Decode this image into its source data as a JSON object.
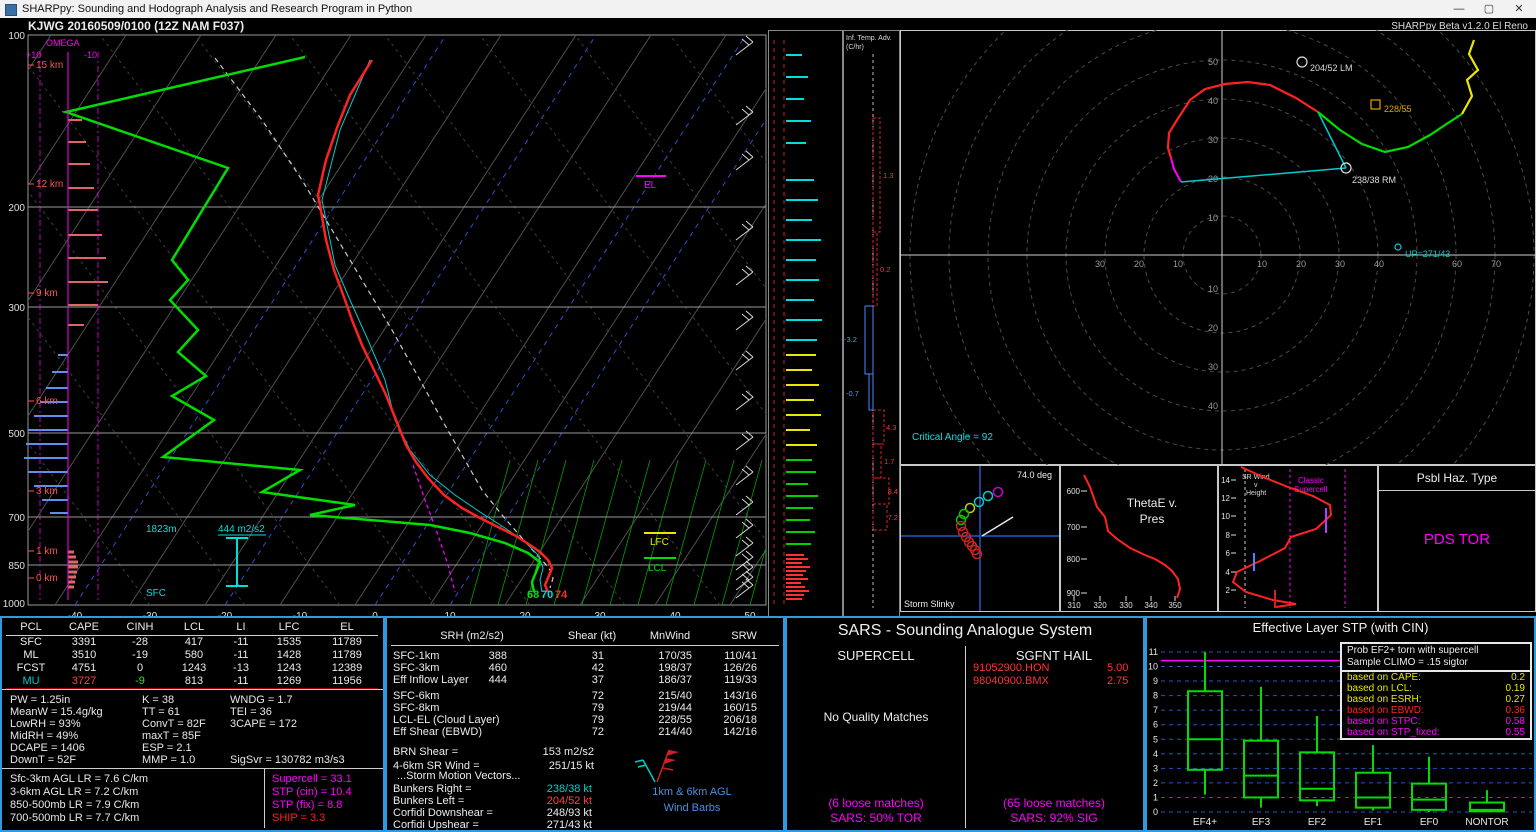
{
  "window": {
    "title": "SHARPpy: Sounding and Hodograph Analysis and Research Program in Python",
    "minimize": "—",
    "maximize": "▢",
    "close": "✕"
  },
  "header": {
    "station_line": "KJWG   20160509/0100  (12Z  NAM  F037)",
    "version": "SHARPpy Beta v1.2.0 El Reno"
  },
  "skewt": {
    "pressure_labels": [
      "100",
      "200",
      "300",
      "500",
      "700",
      "850",
      "1000"
    ],
    "height_labels": [
      "15 km",
      "12 km",
      "9 km",
      "6 km",
      "3 km",
      "1 km",
      "0 km"
    ],
    "temp_labels": [
      "-40",
      "-30",
      "-20",
      "-10",
      "0",
      "10",
      "20",
      "30",
      "40",
      "50"
    ],
    "omega": {
      "title": "OMEGA",
      "plus": "+10",
      "minus": "-10"
    },
    "annotations": {
      "el": "EL",
      "lfc": "LFC",
      "lcl": "LCL",
      "sfc": "SFC",
      "inflow_height": "1823m",
      "inflow_srh": "444 m2/s2",
      "sfc_dewpoint_f": "68",
      "sfc_wetbulb_f": "70",
      "sfc_temp_f": "74"
    }
  },
  "temp_adv": {
    "title_line1": "Inf. Temp. Adv.",
    "title_line2": "(C/hr)",
    "values": [
      "1.3",
      "0.2",
      "-3.2",
      "-0.7",
      "4.3",
      "1.7",
      "8.4",
      "7.2"
    ]
  },
  "hodograph": {
    "axis_up": [
      "10",
      "20",
      "30",
      "40",
      "50"
    ],
    "axis_down": [
      "10",
      "20",
      "30",
      "40"
    ],
    "axis_right": [
      "10",
      "20",
      "30",
      "40",
      "60",
      "70"
    ],
    "axis_left": [
      "10",
      "20",
      "30"
    ],
    "marker_lm": "204/52 LM",
    "marker_mid": "228/55",
    "marker_rm": "238/38 RM",
    "marker_up": "UP=271/43",
    "critical_angle": "Critical Angle = 92"
  },
  "slinky": {
    "title": "Storm Slinky",
    "deg": "74.0 deg"
  },
  "thetae": {
    "title1": "ThetaE v.",
    "title2": "Pres",
    "y_ticks": [
      "600",
      "700",
      "800",
      "900"
    ],
    "x_ticks": [
      "310",
      "320",
      "330",
      "340",
      "350"
    ]
  },
  "srwind": {
    "label1": "SR Wind",
    "label2": "v",
    "label3": "Height",
    "classic1": "Classic",
    "classic2": "Supercell",
    "y_ticks": [
      "14",
      "12",
      "10",
      "8",
      "6",
      "4",
      "2"
    ]
  },
  "hazard": {
    "title": "Psbl Haz. Type",
    "value": "PDS TOR"
  },
  "parcels": {
    "headers": [
      "PCL",
      "CAPE",
      "CINH",
      "LCL",
      "LI",
      "LFC",
      "EL"
    ],
    "rows": [
      {
        "name": "SFC",
        "vals": [
          "3391",
          "-28",
          "417",
          "-11",
          "1535",
          "11789"
        ],
        "mu": false
      },
      {
        "name": "ML",
        "vals": [
          "3510",
          "-19",
          "580",
          "-11",
          "1428",
          "11789"
        ],
        "mu": false
      },
      {
        "name": "FCST",
        "vals": [
          "4751",
          "0",
          "1243",
          "-13",
          "1243",
          "12389"
        ],
        "mu": false
      },
      {
        "name": "MU",
        "vals": [
          "3727",
          "-9",
          "813",
          "-11",
          "1269",
          "11956"
        ],
        "mu": true
      }
    ]
  },
  "thermo": {
    "col1": [
      "PW = 1.25in",
      "MeanW = 15.4g/kg",
      "LowRH = 93%",
      "MidRH = 49%",
      "DCAPE = 1406",
      "DownT = 52F"
    ],
    "col2": [
      "K = 38",
      "TT = 61",
      "ConvT = 82F",
      "maxT = 85F",
      "ESP = 2.1",
      "MMP = 1.0"
    ],
    "col3": [
      "WNDG = 1.7",
      "TEI = 36",
      "3CAPE = 172",
      "",
      "",
      "SigSvr = 130782 m3/s3"
    ]
  },
  "lapse_rates": [
    "Sfc-3km AGL LR = 7.6 C/km",
    "3-6km AGL LR = 7.2 C/km",
    "850-500mb LR = 7.9 C/km",
    "700-500mb LR = 7.7 C/km"
  ],
  "composite": [
    {
      "text": "Supercell = 33.1",
      "color": "#ff00ff"
    },
    {
      "text": "STP (cin) = 10.4",
      "color": "#ff00ff"
    },
    {
      "text": "STP (fix) = 8.8",
      "color": "#ff00ff"
    },
    {
      "text": "SHIP = 3.3",
      "color": "#ff2020"
    }
  ],
  "kinematics": {
    "headers": [
      "SRH (m2/s2)",
      "Shear (kt)",
      "MnWind",
      "SRW"
    ],
    "rows1": [
      {
        "label": "SFC-1km",
        "srh": "388",
        "shear": "31",
        "mnwind": "170/35",
        "srw": "110/41"
      },
      {
        "label": "SFC-3km",
        "srh": "460",
        "shear": "42",
        "mnwind": "198/37",
        "srw": "126/26"
      },
      {
        "label": "Eff Inflow Layer",
        "srh": "444",
        "shear": "37",
        "mnwind": "186/37",
        "srw": "119/33"
      }
    ],
    "rows2": [
      {
        "label": "SFC-6km",
        "srh": "",
        "shear": "72",
        "mnwind": "215/40",
        "srw": "143/16"
      },
      {
        "label": "SFC-8km",
        "srh": "",
        "shear": "79",
        "mnwind": "219/44",
        "srw": "160/15"
      },
      {
        "label": "LCL-EL (Cloud Layer)",
        "srh": "",
        "shear": "79",
        "mnwind": "228/55",
        "srw": "206/18"
      },
      {
        "label": "Eff Shear (EBWD)",
        "srh": "",
        "shear": "72",
        "mnwind": "214/40",
        "srw": "142/16"
      }
    ],
    "brn_rows": [
      {
        "label": "BRN Shear =",
        "value": "153 m2/s2"
      },
      {
        "label": "4-6km SR Wind =",
        "value": "251/15 kt"
      }
    ],
    "sm_title": "...Storm Motion Vectors...",
    "sm_rows": [
      {
        "label": "Bunkers Right =",
        "value": "238/38 kt",
        "color": "#00cccc"
      },
      {
        "label": "Bunkers Left =",
        "value": "204/52 kt",
        "color": "#ff4040"
      },
      {
        "label": "Corfidi Downshear =",
        "value": "248/93 kt",
        "color": "#ececec"
      },
      {
        "label": "Corfidi Upshear =",
        "value": "271/43 kt",
        "color": "#ececec"
      }
    ],
    "barb_caption1": "1km & 6km AGL",
    "barb_caption2": "Wind Barbs"
  },
  "sars": {
    "title": "SARS - Sounding Analogue System",
    "left_header": "SUPERCELL",
    "right_header": "SGFNT HAIL",
    "hail_matches": [
      {
        "name": "91052900.HON",
        "value": "5.00"
      },
      {
        "name": "98040900.BMX",
        "value": "2.75"
      }
    ],
    "supercell_note": "No Quality Matches",
    "left_footer1": "(6 loose matches)",
    "left_footer2": "SARS: 50% TOR",
    "right_footer1": "(65 loose matches)",
    "right_footer2": "SARS: 92% SIG"
  },
  "stp_panel": {
    "title": "Effective Layer STP (with CIN)",
    "y_ticks": [
      "0",
      "1",
      "2",
      "3",
      "4",
      "5",
      "6",
      "7",
      "8",
      "9",
      "10",
      "11"
    ],
    "categories": [
      "EF4+",
      "EF3",
      "EF2",
      "EF1",
      "EF0",
      "NONTOR"
    ],
    "boxes": [
      {
        "lo": 1.2,
        "q1": 2.9,
        "med": 5.0,
        "q3": 8.3,
        "hi": 11.0
      },
      {
        "lo": 0.3,
        "q1": 1.0,
        "med": 2.5,
        "q3": 4.9,
        "hi": 8.6
      },
      {
        "lo": 0.4,
        "q1": 0.8,
        "med": 1.6,
        "q3": 4.1,
        "hi": 6.6
      },
      {
        "lo": 0.1,
        "q1": 0.3,
        "med": 1.0,
        "q3": 2.7,
        "hi": 4.6
      },
      {
        "lo": 0.0,
        "q1": 0.15,
        "med": 0.85,
        "q3": 1.95,
        "hi": 3.8
      },
      {
        "lo": 0.0,
        "q1": 0.05,
        "med": 0.15,
        "q3": 0.65,
        "hi": 1.5
      }
    ],
    "stp_value_line": 10.4,
    "legend": {
      "line1": "Prob EF2+ torn with supercell",
      "line2": "Sample CLIMO = .15 sigtor",
      "rows": [
        {
          "label": "based on CAPE:",
          "value": "0.2",
          "color": "#e8e800"
        },
        {
          "label": "based on LCL:",
          "value": "0.19",
          "color": "#e8e800"
        },
        {
          "label": "based on ESRH:",
          "value": "0.27",
          "color": "#e8e800"
        },
        {
          "label": "based on EBWD:",
          "value": "0.36",
          "color": "#ff2020"
        },
        {
          "label": "based on STPC:",
          "value": "0.58",
          "color": "#ff00ff"
        },
        {
          "label": "based on STP_fixed:",
          "value": "0.55",
          "color": "#ff00ff"
        }
      ]
    }
  }
}
